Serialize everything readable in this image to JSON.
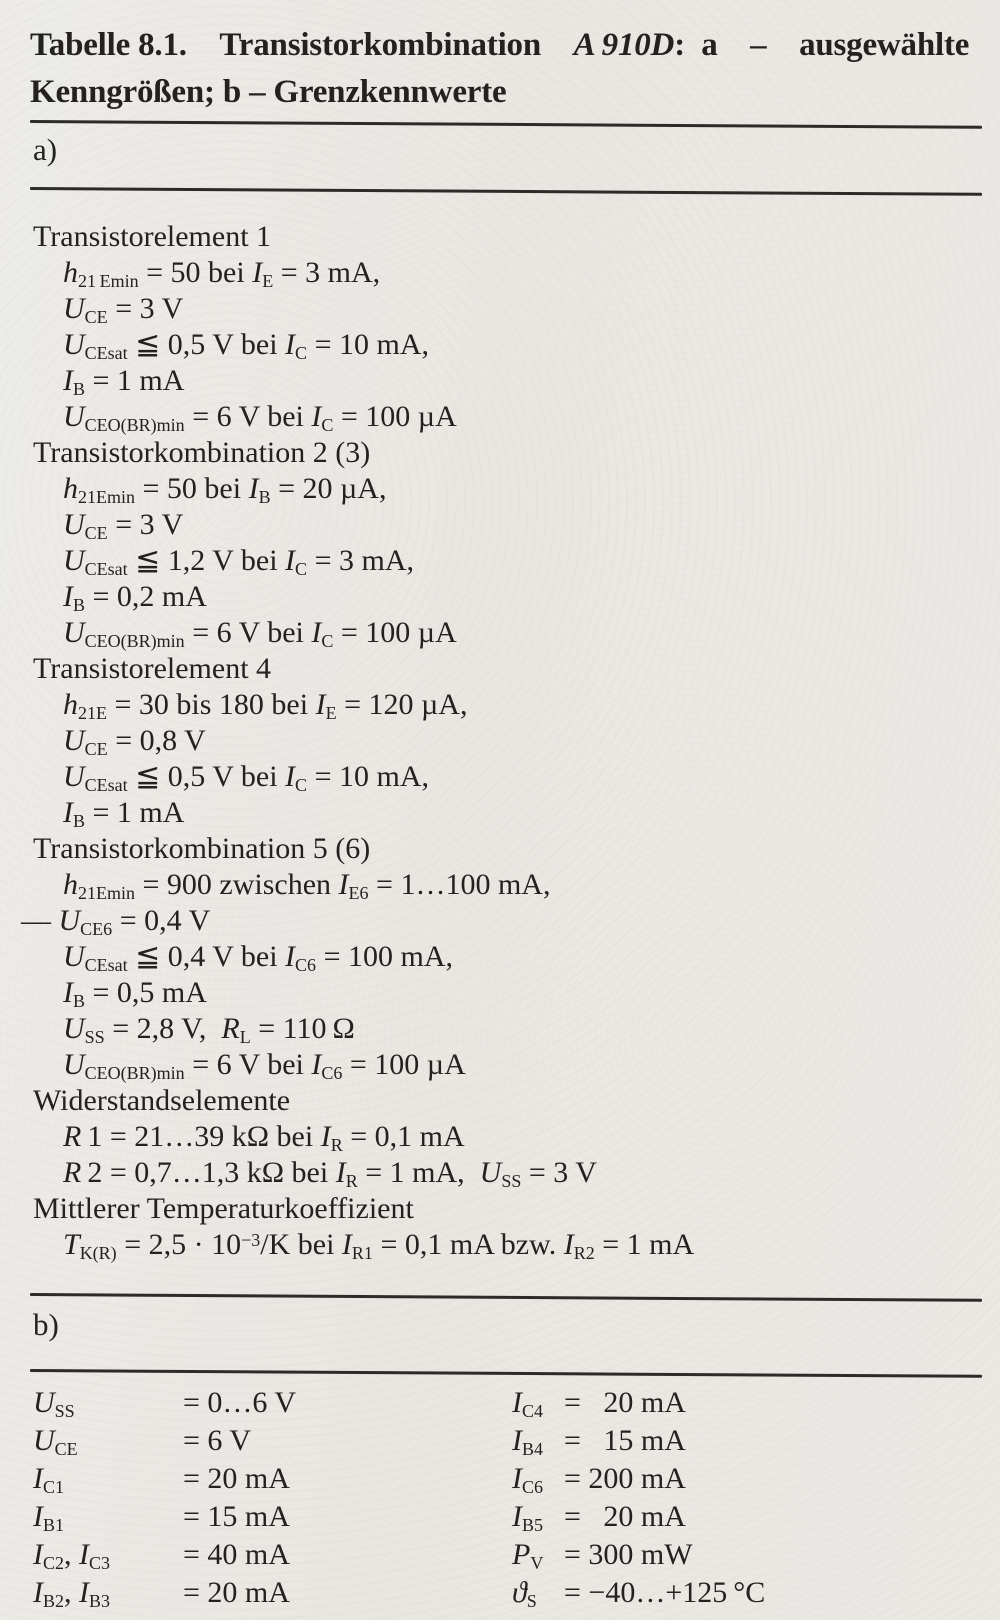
{
  "meta": {
    "paper_color": "#eae8e3",
    "ink_color": "#24221e",
    "rule_color": "#2c2b28"
  },
  "title": {
    "lines": [
      [
        [
          "Tabelle 8.1.",
          "b"
        ],
        [
          "  Transistorkombination  ",
          "b"
        ],
        [
          "A 910D",
          "bi"
        ],
        [
          ": a  –  ausgewählte",
          "b"
        ]
      ],
      [
        [
          "Kenngrößen; b – Grenzkennwerte",
          "b"
        ]
      ]
    ]
  },
  "section_a": {
    "label": "a)",
    "groups": [
      {
        "header": "Transistorelement 1",
        "lines": [
          {
            "seg": [
              [
                "h",
                "i"
              ],
              [
                "21 Emin",
                "s"
              ],
              [
                " = 50 bei ",
                "r"
              ],
              [
                "I",
                "i"
              ],
              [
                "E",
                "s"
              ],
              [
                " = 3 mA,",
                "r"
              ]
            ]
          },
          {
            "seg": [
              [
                "U",
                "i"
              ],
              [
                "CE",
                "s"
              ],
              [
                " = 3 V",
                "r"
              ]
            ]
          },
          {
            "seg": [
              [
                "U",
                "i"
              ],
              [
                "CEsat",
                "s"
              ],
              [
                " ≦ 0,5 V bei ",
                "r"
              ],
              [
                "I",
                "i"
              ],
              [
                "C",
                "s"
              ],
              [
                " = 10 mA,",
                "r"
              ]
            ]
          },
          {
            "seg": [
              [
                "I",
                "i"
              ],
              [
                "B",
                "s"
              ],
              [
                " = 1 mA",
                "r"
              ]
            ]
          },
          {
            "seg": [
              [
                "U",
                "i"
              ],
              [
                "CEO(BR)min",
                "s"
              ],
              [
                " = 6 V bei ",
                "r"
              ],
              [
                "I",
                "i"
              ],
              [
                "C",
                "s"
              ],
              [
                " = 100 µA",
                "r"
              ]
            ]
          }
        ]
      },
      {
        "header": "Transistorkombination 2 (3)",
        "lines": [
          {
            "seg": [
              [
                "h",
                "i"
              ],
              [
                "21Emin",
                "s"
              ],
              [
                " = 50 bei ",
                "r"
              ],
              [
                "I",
                "i"
              ],
              [
                "B",
                "s"
              ],
              [
                " = 20 µA,",
                "r"
              ]
            ]
          },
          {
            "seg": [
              [
                "U",
                "i"
              ],
              [
                "CE",
                "s"
              ],
              [
                " = 3 V",
                "r"
              ]
            ]
          },
          {
            "seg": [
              [
                "U",
                "i"
              ],
              [
                "CEsat",
                "s"
              ],
              [
                " ≦ 1,2 V bei ",
                "r"
              ],
              [
                "I",
                "i"
              ],
              [
                "C",
                "s"
              ],
              [
                " = 3 mA,",
                "r"
              ]
            ]
          },
          {
            "seg": [
              [
                "I",
                "i"
              ],
              [
                "B",
                "s"
              ],
              [
                " = 0,2 mA",
                "r"
              ]
            ]
          },
          {
            "seg": [
              [
                "U",
                "i"
              ],
              [
                "CEO(BR)min",
                "s"
              ],
              [
                " = 6 V bei ",
                "r"
              ],
              [
                "I",
                "i"
              ],
              [
                "C",
                "s"
              ],
              [
                " = 100 µA",
                "r"
              ]
            ]
          }
        ]
      },
      {
        "header": "Transistorelement 4",
        "lines": [
          {
            "seg": [
              [
                "h",
                "i"
              ],
              [
                "21E",
                "s"
              ],
              [
                " = 30 bis 180 bei ",
                "r"
              ],
              [
                "I",
                "i"
              ],
              [
                "E",
                "s"
              ],
              [
                " = 120 µA,",
                "r"
              ]
            ]
          },
          {
            "seg": [
              [
                "U",
                "i"
              ],
              [
                "CE",
                "s"
              ],
              [
                " = 0,8 V",
                "r"
              ]
            ]
          },
          {
            "seg": [
              [
                "U",
                "i"
              ],
              [
                "CEsat",
                "s"
              ],
              [
                " ≦ 0,5 V bei ",
                "r"
              ],
              [
                "I",
                "i"
              ],
              [
                "C",
                "s"
              ],
              [
                " = 10 mA,",
                "r"
              ]
            ]
          },
          {
            "seg": [
              [
                "I",
                "i"
              ],
              [
                "B",
                "s"
              ],
              [
                " = 1 mA",
                "r"
              ]
            ]
          }
        ]
      },
      {
        "header": "Transistorkombination 5 (6)",
        "lines": [
          {
            "seg": [
              [
                "h",
                "i"
              ],
              [
                "21Emin",
                "s"
              ],
              [
                " = 900 zwischen ",
                "r"
              ],
              [
                "I",
                "i"
              ],
              [
                "E6",
                "s"
              ],
              [
                " = 1…100 mA,",
                "r"
              ]
            ]
          },
          {
            "hang": true,
            "seg": [
              [
                "— ",
                "r"
              ],
              [
                "U",
                "i"
              ],
              [
                "CE6",
                "s"
              ],
              [
                " = 0,4 V",
                "r"
              ]
            ]
          },
          {
            "seg": [
              [
                "U",
                "i"
              ],
              [
                "CEsat",
                "s"
              ],
              [
                " ≦ 0,4 V bei ",
                "r"
              ],
              [
                "I",
                "i"
              ],
              [
                "C6",
                "s"
              ],
              [
                " = 100 mA,",
                "r"
              ]
            ]
          },
          {
            "seg": [
              [
                "I",
                "i"
              ],
              [
                "B",
                "s"
              ],
              [
                " = 0,5 mA",
                "r"
              ]
            ]
          },
          {
            "seg": [
              [
                "U",
                "i"
              ],
              [
                "SS",
                "s"
              ],
              [
                " = 2,8 V, ",
                "r"
              ],
              [
                "R",
                "i"
              ],
              [
                "L",
                "s"
              ],
              [
                " = 110 Ω",
                "r"
              ]
            ]
          },
          {
            "seg": [
              [
                "U",
                "i"
              ],
              [
                "CEO(BR)min",
                "s"
              ],
              [
                " = 6 V bei ",
                "r"
              ],
              [
                "I",
                "i"
              ],
              [
                "C6",
                "s"
              ],
              [
                " = 100 µA",
                "r"
              ]
            ]
          }
        ]
      },
      {
        "header": "Widerstandselemente",
        "lines": [
          {
            "seg": [
              [
                "R",
                "i"
              ],
              [
                " 1 = 21…39 kΩ bei ",
                "r"
              ],
              [
                "I",
                "i"
              ],
              [
                "R",
                "s"
              ],
              [
                " = 0,1 mA",
                "r"
              ]
            ]
          },
          {
            "seg": [
              [
                "R",
                "i"
              ],
              [
                " 2 = 0,7…1,3 kΩ bei ",
                "r"
              ],
              [
                "I",
                "i"
              ],
              [
                "R",
                "s"
              ],
              [
                " = 1 mA, ",
                "r"
              ],
              [
                "U",
                "i"
              ],
              [
                "SS",
                "s"
              ],
              [
                " = 3 V",
                "r"
              ]
            ]
          }
        ]
      },
      {
        "header": "Mittlerer Temperaturkoeffizient",
        "lines": [
          {
            "seg": [
              [
                "T",
                "i"
              ],
              [
                "K(R)",
                "s"
              ],
              [
                " = 2,5 · 10",
                "r"
              ],
              [
                "−3",
                "p"
              ],
              [
                "/K bei ",
                "r"
              ],
              [
                "I",
                "i"
              ],
              [
                "R1",
                "s"
              ],
              [
                " = 0,1 mA bzw. ",
                "r"
              ],
              [
                "I",
                "i"
              ],
              [
                "R2",
                "s"
              ],
              [
                " = 1 mA",
                "r"
              ]
            ]
          }
        ]
      }
    ]
  },
  "section_b": {
    "label": "b)",
    "left_rows": [
      {
        "sym": [
          [
            "U",
            "i"
          ],
          [
            "SS",
            "s"
          ]
        ],
        "val": "= 0…6 V"
      },
      {
        "sym": [
          [
            "U",
            "i"
          ],
          [
            "CE",
            "s"
          ]
        ],
        "val": "= 6 V"
      },
      {
        "sym": [
          [
            "I",
            "i"
          ],
          [
            "C1",
            "s"
          ]
        ],
        "val": "= 20 mA"
      },
      {
        "sym": [
          [
            "I",
            "i"
          ],
          [
            "B1",
            "s"
          ]
        ],
        "val": "= 15 mA"
      },
      {
        "sym": [
          [
            "I",
            "i"
          ],
          [
            "C2",
            "s"
          ],
          [
            ", ",
            "r"
          ],
          [
            "I",
            "i"
          ],
          [
            "C3",
            "s"
          ]
        ],
        "val": "= 40 mA"
      },
      {
        "sym": [
          [
            "I",
            "i"
          ],
          [
            "B2",
            "s"
          ],
          [
            ", ",
            "r"
          ],
          [
            "I",
            "i"
          ],
          [
            "B3",
            "s"
          ]
        ],
        "val": "= 20 mA"
      }
    ],
    "right_rows": [
      {
        "sym": [
          [
            "I",
            "i"
          ],
          [
            "C4",
            "s"
          ]
        ],
        "val": "=  20 mA"
      },
      {
        "sym": [
          [
            "I",
            "i"
          ],
          [
            "B4",
            "s"
          ]
        ],
        "val": "=  15 mA"
      },
      {
        "sym": [
          [
            "I",
            "i"
          ],
          [
            "C6",
            "s"
          ]
        ],
        "val": "= 200 mA"
      },
      {
        "sym": [
          [
            "I",
            "i"
          ],
          [
            "B5",
            "s"
          ]
        ],
        "val": "=  20 mA"
      },
      {
        "sym": [
          [
            "P",
            "i"
          ],
          [
            "V",
            "s"
          ]
        ],
        "val": "= 300 mW"
      },
      {
        "sym": [
          [
            "ϑ",
            "i"
          ],
          [
            "S",
            "s"
          ]
        ],
        "val": "= −40…+125 °C"
      }
    ]
  }
}
